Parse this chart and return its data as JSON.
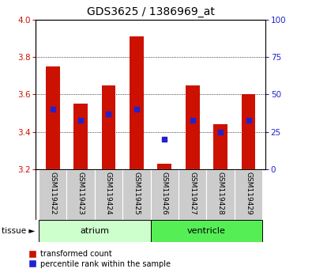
{
  "title": "GDS3625 / 1386969_at",
  "samples": [
    "GSM119422",
    "GSM119423",
    "GSM119424",
    "GSM119425",
    "GSM119426",
    "GSM119427",
    "GSM119428",
    "GSM119429"
  ],
  "bar_tops": [
    3.75,
    3.55,
    3.65,
    3.91,
    3.23,
    3.65,
    3.44,
    3.6
  ],
  "bar_base": 3.2,
  "percentile_values": [
    40,
    33,
    37,
    40,
    20,
    33,
    25,
    33
  ],
  "ylim_left": [
    3.2,
    4.0
  ],
  "ylim_right": [
    0,
    100
  ],
  "yticks_left": [
    3.2,
    3.4,
    3.6,
    3.8,
    4.0
  ],
  "yticks_right": [
    0,
    25,
    50,
    75,
    100
  ],
  "bar_color": "#cc1100",
  "blue_color": "#2222cc",
  "atrium_color": "#ccffcc",
  "ventricle_color": "#55ee55",
  "tick_bg_color": "#cccccc",
  "bar_width": 0.5,
  "legend_red_label": "transformed count",
  "legend_blue_label": "percentile rank within the sample",
  "tissue_label": "tissue",
  "atrium_label": "atrium",
  "ventricle_label": "ventricle"
}
